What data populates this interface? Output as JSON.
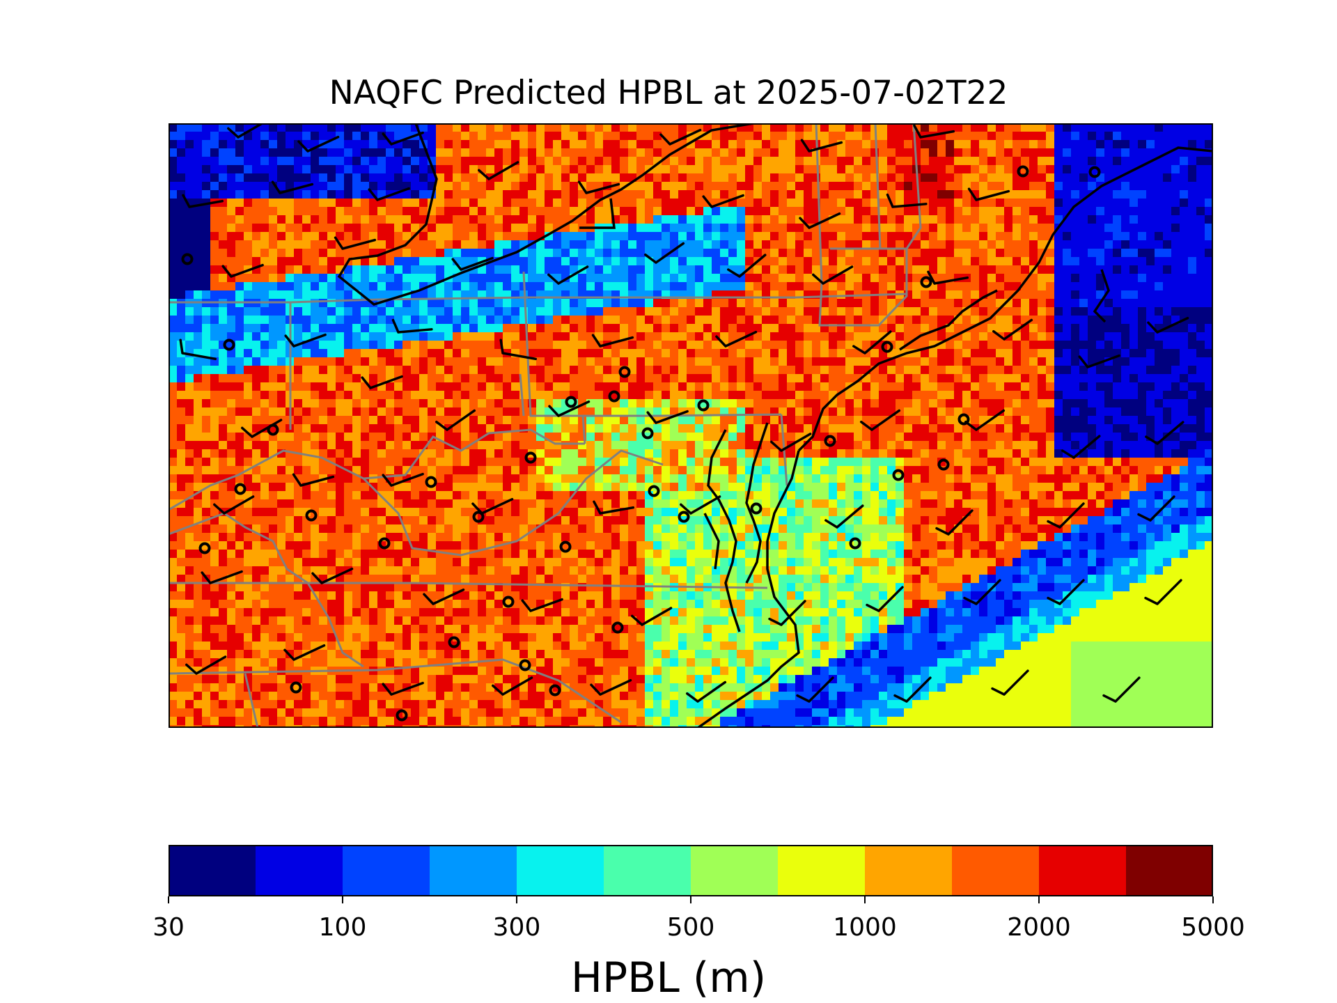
{
  "title": "NAQFC Predicted HPBL at 2025-07-02T22",
  "colorbar": {
    "label": "HPBL (m)",
    "ticks": [
      "30",
      "100",
      "300",
      "500",
      "1000",
      "2000",
      "5000"
    ],
    "colors": [
      "#00007f",
      "#0000e4",
      "#0043ff",
      "#0097ff",
      "#08f2ee",
      "#4affac",
      "#a0ff56",
      "#eaff0c",
      "#ffa500",
      "#ff5a00",
      "#e60000",
      "#7f0000"
    ],
    "boundaries": [
      30,
      50,
      100,
      200,
      300,
      400,
      500,
      750,
      1000,
      1500,
      2000,
      3000,
      5000
    ]
  },
  "map": {
    "description_colors": {
      "state_borders": "#808080",
      "coastline": "#000000",
      "barbs": "#000000"
    },
    "wind_barbs": "present",
    "station_markers": "present"
  }
}
